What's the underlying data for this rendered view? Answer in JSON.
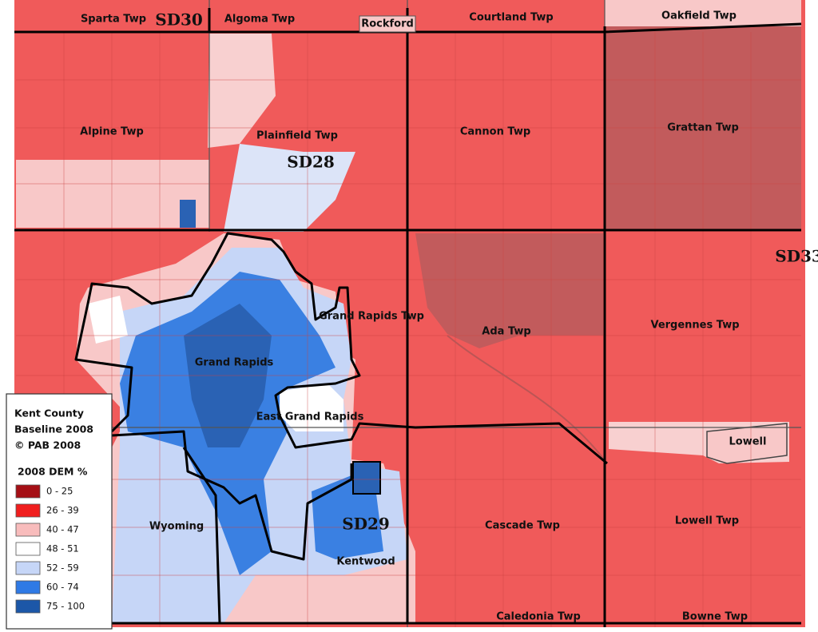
{
  "places": [
    "Sparta Twp",
    "Algoma Twp",
    "Rockford",
    "Courtland Twp",
    "Oakfield Twp",
    "Alpine Twp",
    "Plainfield Twp",
    "Cannon Twp",
    "Grattan Twp",
    "Grand Rapids Twp",
    "Ada Twp",
    "Vergennes Twp",
    "Grand Rapids",
    "East Grand Rapids",
    "Lowell",
    "Wyoming",
    "Kentwood",
    "Cascade Twp",
    "Lowell Twp",
    "Caledonia Twp",
    "Bowne Twp"
  ],
  "districts": [
    "SD30",
    "SD28",
    "SD33",
    "SD29"
  ],
  "legend": {
    "lines": [
      "Kent County",
      "Baseline 2008",
      "© PAB 2008"
    ],
    "heading": "2008 DEM %",
    "items": [
      {
        "label": "0 - 25",
        "color": "#a50f15"
      },
      {
        "label": "26 - 39",
        "color": "#f01e1e"
      },
      {
        "label": "40 - 47",
        "color": "#f8bcbc"
      },
      {
        "label": "48 - 51",
        "color": "#ffffff"
      },
      {
        "label": "52 - 59",
        "color": "#c6d6f7"
      },
      {
        "label": "60 - 74",
        "color": "#2f7ae5"
      },
      {
        "label": "75 - 100",
        "color": "#1c57a8"
      }
    ]
  }
}
